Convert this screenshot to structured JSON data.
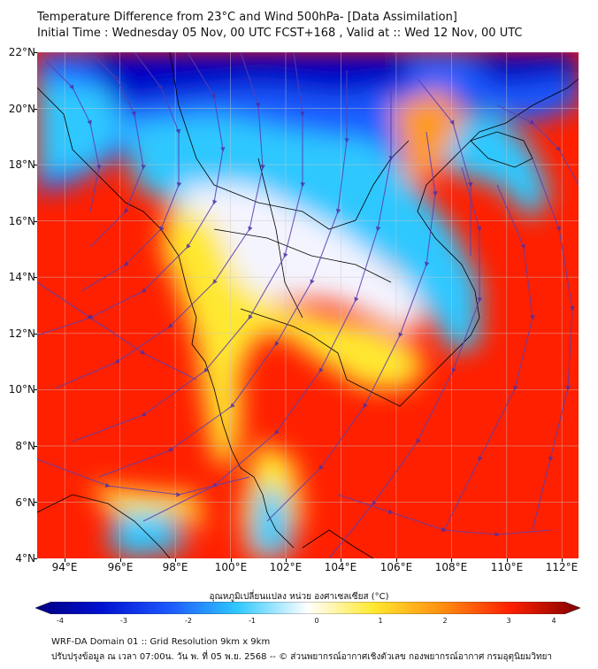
{
  "header": {
    "title_line1": "Temperature Difference from 23°C and Wind 500hPa- [Data Assimilation]",
    "title_line2": "Initial Time : Wednesday 05 Nov, 00 UTC FCST+168 , Valid at ::  Wed 12 Nov, 00 UTC"
  },
  "axes": {
    "lat_labels": [
      "22°N",
      "20°N",
      "18°N",
      "16°N",
      "14°N",
      "12°N",
      "10°N",
      "8°N",
      "6°N",
      "4°N"
    ],
    "lon_labels": [
      "94°E",
      "96°E",
      "98°E",
      "100°E",
      "102°E",
      "104°E",
      "106°E",
      "108°E",
      "110°E",
      "112°E"
    ],
    "lat_range": [
      4,
      22
    ],
    "lon_range": [
      93,
      112.6
    ]
  },
  "colorbar": {
    "title": "อุณหภูมิเปลี่ยนแปลง หน่วย องศาเซลเซียส (°C)",
    "ticks": [
      "-4",
      "-3",
      "-2",
      "-1",
      "0",
      "1",
      "2",
      "3",
      "4"
    ],
    "range": [
      -4,
      4
    ]
  },
  "footer": {
    "line1": "WRF-DA Domain 01 :: Grid Resolution 9km x 9km",
    "line2": "ปรับปรุงข้อมูล ณ เวลา 07:00น. วัน พ. ที่ 05 พ.ย. 2568 -- © ส่วนพยากรณ์อากาศเชิงตัวเลข กองพยากรณ์อากาศ กรมอุตุนิยมวิทยา"
  },
  "colors": {
    "cold_deep": "#0000c8",
    "cold": "#1e5cff",
    "cool": "#2ec8ff",
    "neutral": "#ffffff",
    "warm": "#ffe830",
    "hot": "#ff2000",
    "hot_deep": "#e00000",
    "streamline": "#5b3fb0",
    "coast": "#000000"
  }
}
